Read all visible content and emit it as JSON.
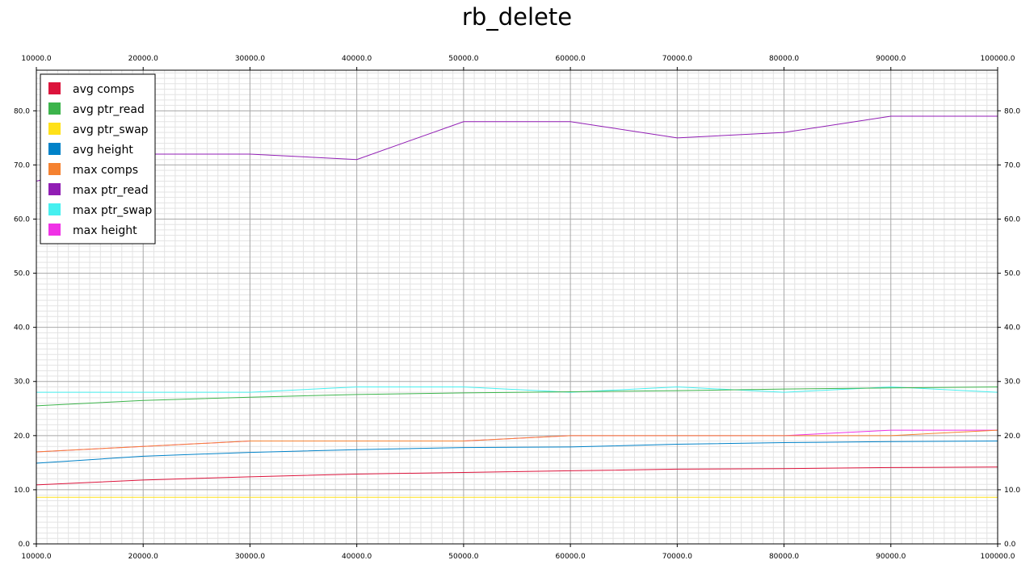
{
  "chart_data": {
    "type": "line",
    "title": "rb_delete",
    "xlabel": "",
    "ylabel": "",
    "x": [
      10000.0,
      20000.0,
      30000.0,
      40000.0,
      50000.0,
      60000.0,
      70000.0,
      80000.0,
      90000.0,
      100000.0
    ],
    "x_tick_labels": [
      "10000.0",
      "20000.0",
      "30000.0",
      "40000.0",
      "50000.0",
      "60000.0",
      "70000.0",
      "80000.0",
      "90000.0",
      "100000.0"
    ],
    "y_tick_labels": [
      "0.0",
      "10.0",
      "20.0",
      "30.0",
      "40.0",
      "50.0",
      "60.0",
      "70.0",
      "80.0"
    ],
    "xlim": [
      10000,
      100000
    ],
    "ylim": [
      0,
      87.5
    ],
    "grid": true,
    "legend_position": "top-left",
    "series": [
      {
        "name": "avg comps",
        "color": "#dc143c",
        "values": [
          10.9,
          11.8,
          12.4,
          12.9,
          13.2,
          13.5,
          13.8,
          13.9,
          14.1,
          14.2
        ]
      },
      {
        "name": "avg ptr_read",
        "color": "#3cb44b",
        "values": [
          25.5,
          26.5,
          27.1,
          27.6,
          27.9,
          28.1,
          28.3,
          28.6,
          28.8,
          29.0
        ]
      },
      {
        "name": "avg ptr_swap",
        "color": "#ffe119",
        "values": [
          8.6,
          8.6,
          8.6,
          8.6,
          8.6,
          8.6,
          8.6,
          8.6,
          8.6,
          8.6
        ]
      },
      {
        "name": "avg height",
        "color": "#0082c8",
        "values": [
          14.9,
          16.2,
          16.9,
          17.4,
          17.8,
          17.9,
          18.4,
          18.7,
          18.9,
          19.0
        ]
      },
      {
        "name": "max comps",
        "color": "#f58231",
        "values": [
          17.0,
          18.0,
          19.0,
          19.0,
          19.0,
          20.0,
          20.0,
          20.0,
          20.0,
          21.0
        ]
      },
      {
        "name": "max ptr_read",
        "color": "#911eb4",
        "values": [
          67.0,
          72.0,
          72.0,
          71.0,
          78.0,
          78.0,
          75.0,
          76.0,
          79.0,
          79.0
        ]
      },
      {
        "name": "max ptr_swap",
        "color": "#46f0f0",
        "values": [
          28.0,
          28.0,
          28.0,
          29.0,
          29.0,
          28.0,
          29.0,
          28.0,
          29.0,
          28.0
        ]
      },
      {
        "name": "max height",
        "color": "#f032e6",
        "values": [
          17.0,
          18.0,
          19.0,
          19.0,
          19.0,
          20.0,
          20.0,
          20.0,
          21.0,
          21.0
        ]
      }
    ]
  }
}
